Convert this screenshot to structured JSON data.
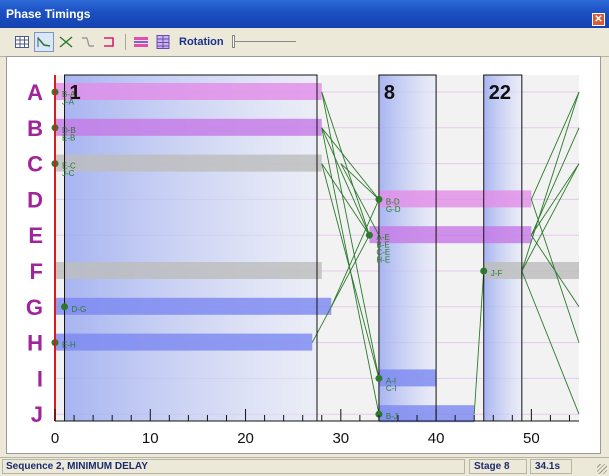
{
  "window": {
    "title": "Phase Timings",
    "close_glyph": "✕"
  },
  "toolbar": {
    "buttons": [
      {
        "name": "grid-view-icon"
      },
      {
        "name": "line-view-icon"
      },
      {
        "name": "cross-view-icon"
      },
      {
        "name": "split-view-icon"
      },
      {
        "name": "bracket-view-icon"
      },
      {
        "name": "bar-color-icon"
      },
      {
        "name": "table-view-icon"
      }
    ],
    "rotation_label": "Rotation",
    "rotation_value": 0
  },
  "status": {
    "sequence": "Sequence 2, MINIMUM DELAY",
    "stage": "Stage 8",
    "time": "34.1s"
  },
  "colors": {
    "pink": "#e28ee8",
    "violet": "#c67ae6",
    "gray": "#bdbdbd",
    "blue": "#7d89f0",
    "green": "#2a7a2a",
    "phase_label": "#a0249a",
    "red_line": "#d21e1e"
  },
  "chart_data": {
    "type": "bar",
    "xlim": [
      0,
      55
    ],
    "x_ticks": [
      0,
      10,
      20,
      30,
      40,
      50
    ],
    "x_tick_labels": [
      "0",
      "10",
      "20",
      "30",
      "40",
      "50"
    ],
    "rows": [
      "A",
      "B",
      "C",
      "D",
      "E",
      "F",
      "G",
      "H",
      "I",
      "J"
    ],
    "stages": [
      {
        "label": "1",
        "start": 1,
        "end": 27.5
      },
      {
        "label": "8",
        "start": 34,
        "end": 40
      },
      {
        "label": "22",
        "start": 45,
        "end": 49
      }
    ],
    "bars": [
      {
        "row": "A",
        "start": 0,
        "end": 28,
        "color": "pink"
      },
      {
        "row": "B",
        "start": 0,
        "end": 28,
        "color": "violet"
      },
      {
        "row": "C",
        "start": 0,
        "end": 28,
        "color": "gray"
      },
      {
        "row": "F",
        "start": 0,
        "end": 28,
        "color": "gray"
      },
      {
        "row": "G",
        "start": 0,
        "end": 29,
        "color": "blue"
      },
      {
        "row": "H",
        "start": 0,
        "end": 27,
        "color": "blue"
      },
      {
        "row": "D",
        "start": 34,
        "end": 50,
        "color": "pink"
      },
      {
        "row": "E",
        "start": 33,
        "end": 50,
        "color": "violet"
      },
      {
        "row": "F",
        "start": 45,
        "end": 55,
        "color": "gray"
      },
      {
        "row": "I",
        "start": 34,
        "end": 40,
        "color": "blue"
      },
      {
        "row": "J",
        "start": 34,
        "end": 44,
        "color": "blue"
      }
    ],
    "markers": [
      {
        "row": "A",
        "x": 0,
        "labels": [
          "B-A",
          "J-A"
        ]
      },
      {
        "row": "B",
        "x": 0,
        "labels": [
          "D-B",
          "E-B"
        ]
      },
      {
        "row": "C",
        "x": 0,
        "labels": [
          "E-C",
          "J-C"
        ]
      },
      {
        "row": "G",
        "x": 1,
        "labels": [
          "D-G"
        ]
      },
      {
        "row": "H",
        "x": 0,
        "labels": [
          "E-H"
        ]
      },
      {
        "row": "D",
        "x": 34,
        "labels": [
          "B-D",
          "G-D"
        ]
      },
      {
        "row": "E",
        "x": 33,
        "labels": [
          "A-E",
          "B-E",
          "C-E",
          "H-E"
        ]
      },
      {
        "row": "F",
        "x": 45,
        "labels": [
          "J-F"
        ]
      },
      {
        "row": "I",
        "x": 34,
        "labels": [
          "A-I",
          "C-I"
        ]
      },
      {
        "row": "J",
        "x": 34,
        "labels": [
          "B-J"
        ]
      }
    ],
    "links": [
      {
        "x1": 28,
        "r1": "A",
        "x2": 33,
        "r2": "E"
      },
      {
        "x1": 28,
        "r1": "A",
        "x2": 34,
        "r2": "I"
      },
      {
        "x1": 28,
        "r1": "B",
        "x2": 34,
        "r2": "D"
      },
      {
        "x1": 28,
        "r1": "B",
        "x2": 33,
        "r2": "E"
      },
      {
        "x1": 28,
        "r1": "B",
        "x2": 34,
        "r2": "J"
      },
      {
        "x1": 28,
        "r1": "C",
        "x2": 33,
        "r2": "E"
      },
      {
        "x1": 28,
        "r1": "C",
        "x2": 34,
        "r2": "I"
      },
      {
        "x1": 29,
        "r1": "G",
        "x2": 34,
        "r2": "D"
      },
      {
        "x1": 27,
        "r1": "H",
        "x2": 33,
        "r2": "E"
      },
      {
        "x1": 30,
        "r1": "C",
        "x2": 34,
        "r2": "E"
      },
      {
        "x1": 30,
        "r1": "C",
        "x2": 34,
        "r2": "D"
      },
      {
        "x1": 44,
        "r1": "J",
        "x2": 45,
        "r2": "F"
      },
      {
        "x1": 50,
        "r1": "D",
        "x2": 55,
        "r2": "A"
      },
      {
        "x1": 50,
        "r1": "D",
        "x2": 55,
        "r2": "H"
      },
      {
        "x1": 50,
        "r1": "E",
        "x2": 55,
        "r2": "B"
      },
      {
        "x1": 50,
        "r1": "E",
        "x2": 55,
        "r2": "C"
      },
      {
        "x1": 50,
        "r1": "E",
        "x2": 55,
        "r2": "G"
      },
      {
        "x1": 49,
        "r1": "F",
        "x2": 55,
        "r2": "A"
      },
      {
        "x1": 49,
        "r1": "F",
        "x2": 55,
        "r2": "C"
      },
      {
        "x1": 49,
        "r1": "F",
        "x2": 55,
        "r2": "J"
      }
    ]
  }
}
